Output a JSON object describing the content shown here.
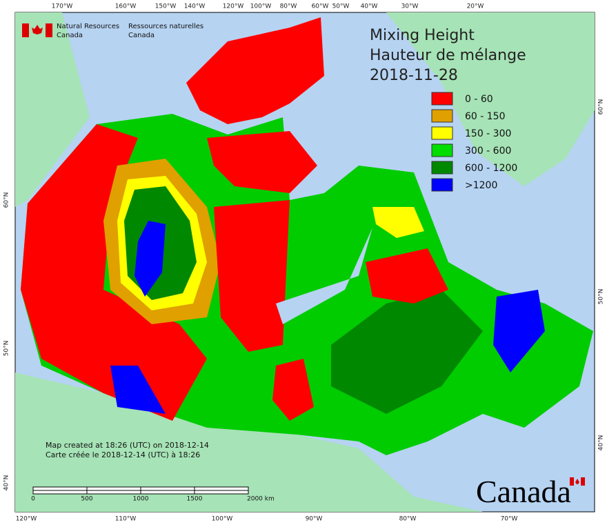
{
  "header": {
    "agency_en": [
      "Natural Resources",
      "Canada"
    ],
    "agency_fr": [
      "Ressources naturelles",
      "Canada"
    ]
  },
  "title": {
    "lines": [
      "Mixing Height",
      "Hauteur de mélange",
      "2018-11-28"
    ]
  },
  "legend": {
    "items": [
      {
        "label": "0 - 60",
        "color": "#ff0000"
      },
      {
        "label": "60 - 150",
        "color": "#e0a000"
      },
      {
        "label": "150 - 300",
        "color": "#ffff00"
      },
      {
        "label": "300 - 600",
        "color": "#00dd00"
      },
      {
        "label": "600 - 1200",
        "color": "#008800"
      },
      {
        "label": ">1200",
        "color": "#0000ff"
      }
    ]
  },
  "graticule": {
    "top": [
      "170°W",
      "160°W",
      "150°W",
      "140°W",
      "120°W",
      "100°W",
      "80°W",
      "60°W",
      "50°W",
      "40°W",
      "30°W",
      "20°W"
    ],
    "bottom": [
      "120°W",
      "110°W",
      "100°W",
      "90°W",
      "80°W",
      "70°W"
    ],
    "left": [
      "60°N",
      "50°N",
      "40°N"
    ],
    "right": [
      "60°N",
      "50°N",
      "40°N"
    ]
  },
  "notes": [
    "Map created at 18:26 (UTC) on 2018-12-14",
    "Carte créée le 2018-12-14 (UTC) à 18:26"
  ],
  "scale_bar": {
    "labels": [
      "0",
      "500",
      "1000",
      "1500",
      "2000 km"
    ]
  },
  "wordmark": "Canada"
}
